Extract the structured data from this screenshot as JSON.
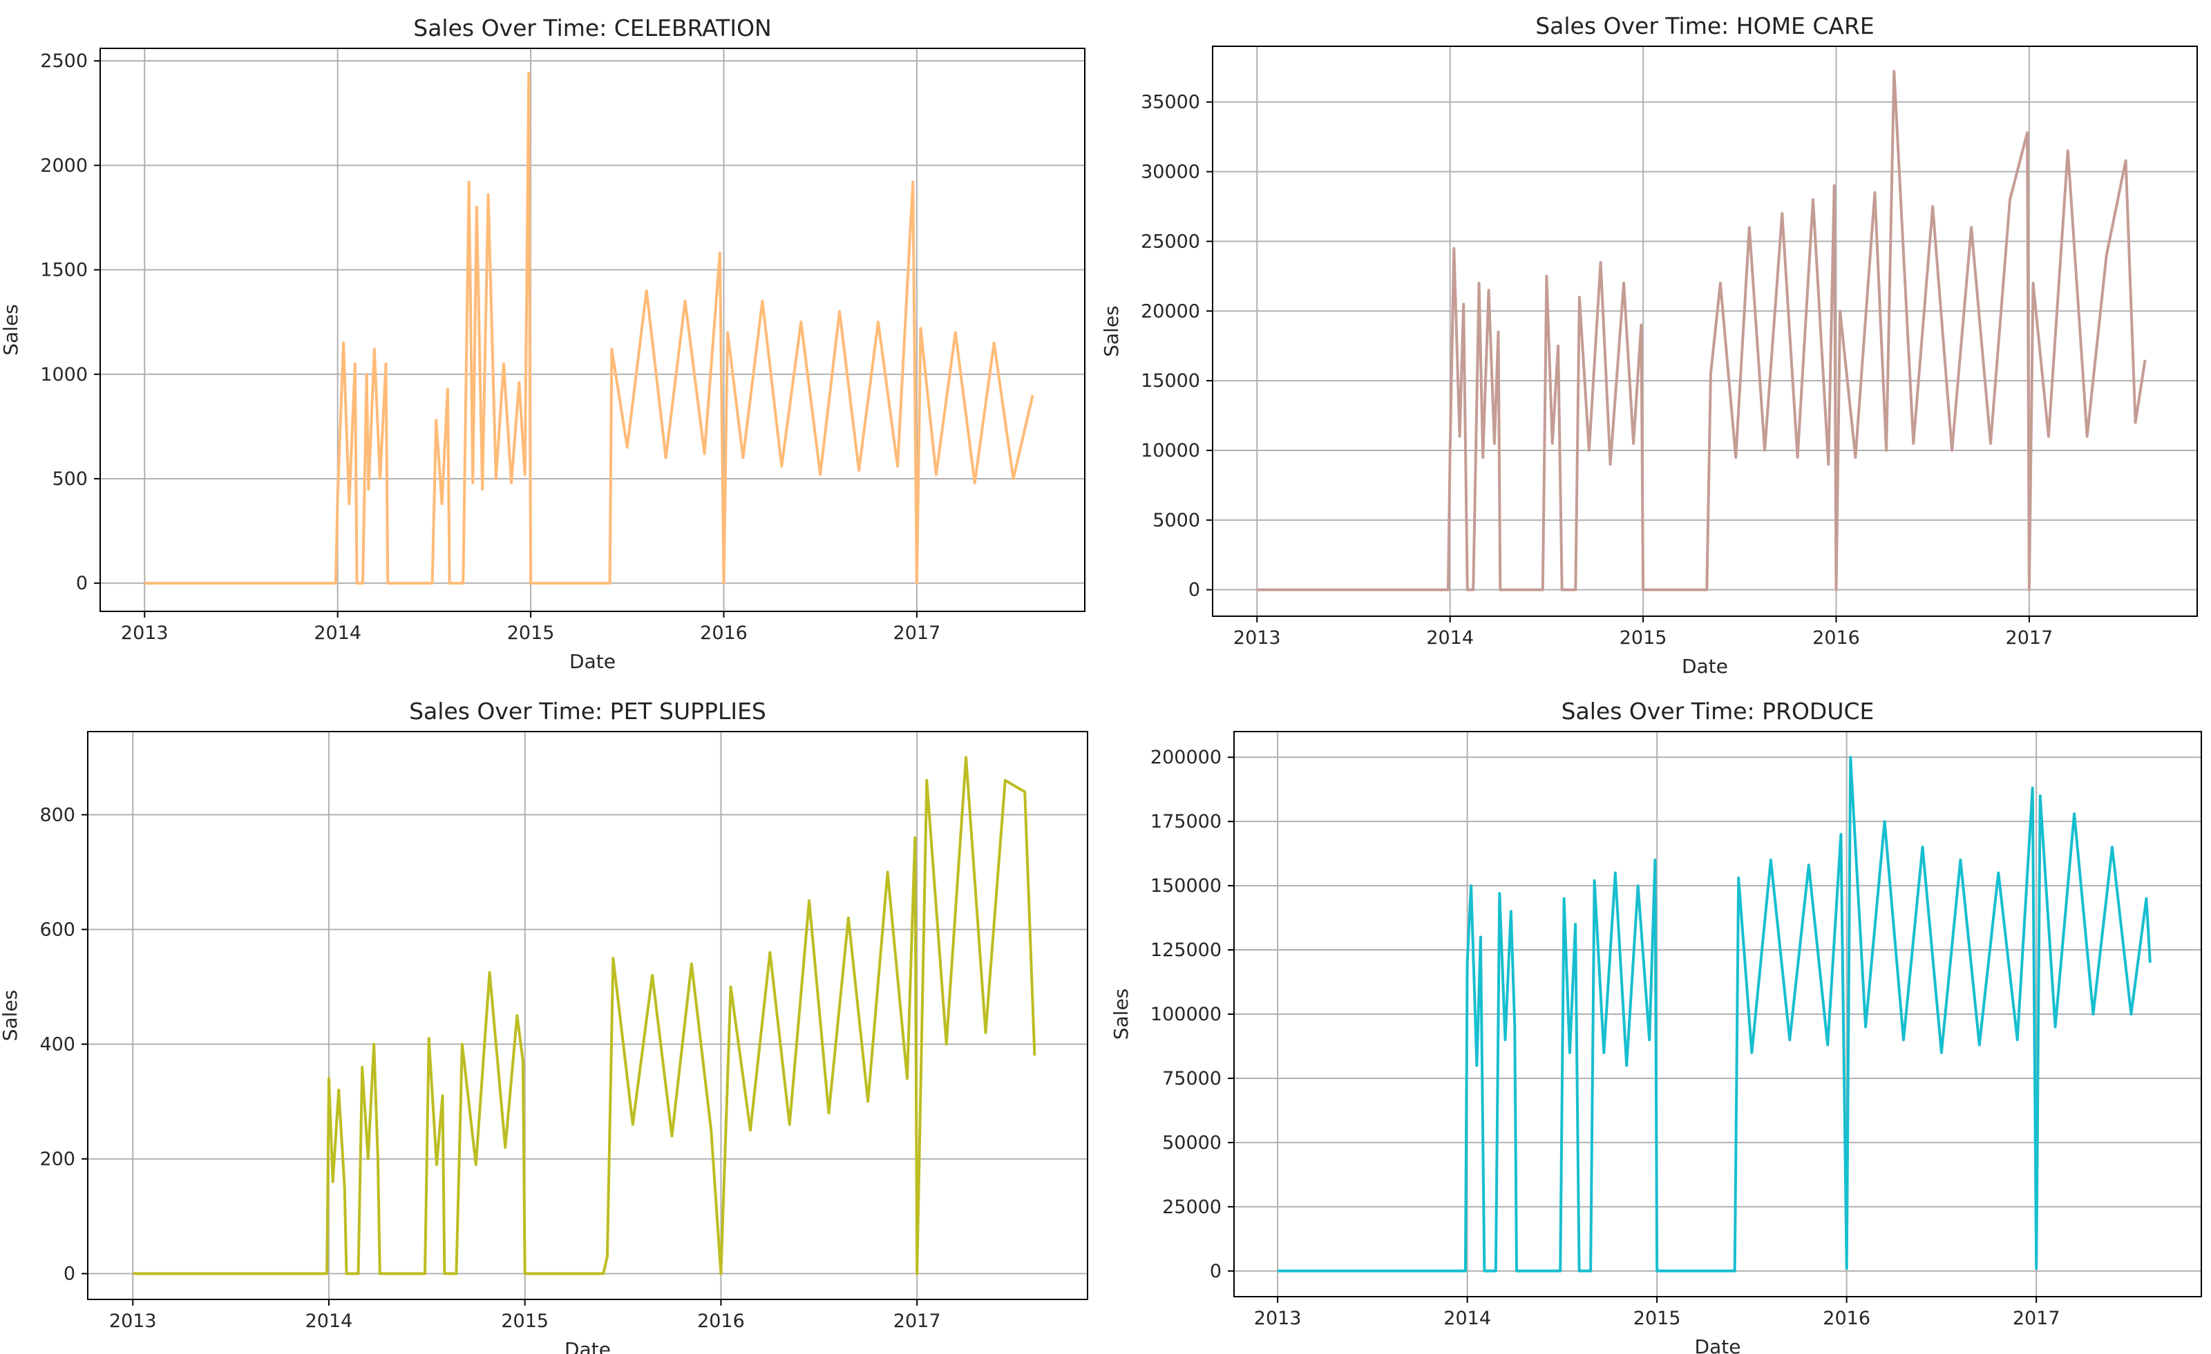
{
  "figure": {
    "background": "#ffffff",
    "grid_color": "#b0b0b0",
    "axes_color": "#000000"
  },
  "chart_data": [
    {
      "type": "line",
      "title": "Sales Over Time: CELEBRATION",
      "xlabel": "Date",
      "ylabel": "Sales",
      "color": "#ffbb78",
      "grid": true,
      "legend": "none",
      "xlim": [
        2012.77,
        2017.87
      ],
      "ylim": [
        -135,
        2560
      ],
      "xticks": [
        2013,
        2014,
        2015,
        2016,
        2017
      ],
      "xtick_labels": [
        "2013",
        "2014",
        "2015",
        "2016",
        "2017"
      ],
      "yticks": [
        0,
        500,
        1000,
        1500,
        2000,
        2500
      ],
      "ytick_labels": [
        "0",
        "500",
        "1000",
        "1500",
        "2000",
        "2500"
      ],
      "series": [
        {
          "x": [
            2013.0,
            2013.99,
            2014.0,
            2014.03,
            2014.06,
            2014.09,
            2014.1,
            2014.13,
            2014.15,
            2014.16,
            2014.19,
            2014.22,
            2014.25,
            2014.26,
            2014.49,
            2014.51,
            2014.54,
            2014.57,
            2014.58,
            2014.65,
            2014.68,
            2014.7,
            2014.72,
            2014.75,
            2014.78,
            2014.82,
            2014.86,
            2014.9,
            2014.94,
            2014.97,
            2014.99,
            2015.0,
            2015.41,
            2015.42,
            2015.5,
            2015.6,
            2015.7,
            2015.8,
            2015.9,
            2015.98,
            2016.0,
            2016.02,
            2016.1,
            2016.2,
            2016.3,
            2016.4,
            2016.5,
            2016.6,
            2016.7,
            2016.8,
            2016.9,
            2016.98,
            2017.0,
            2017.02,
            2017.1,
            2017.2,
            2017.3,
            2017.4,
            2017.5,
            2017.6
          ],
          "y": [
            0,
            0,
            420,
            1150,
            380,
            1050,
            0,
            0,
            1000,
            450,
            1120,
            500,
            1050,
            0,
            0,
            780,
            380,
            930,
            0,
            0,
            1920,
            480,
            1800,
            450,
            1860,
            500,
            1050,
            480,
            960,
            520,
            2440,
            0,
            0,
            1120,
            650,
            1400,
            600,
            1350,
            620,
            1580,
            0,
            1200,
            600,
            1350,
            560,
            1250,
            520,
            1300,
            540,
            1250,
            560,
            1920,
            0,
            1220,
            520,
            1200,
            480,
            1150,
            500,
            900
          ]
        }
      ]
    },
    {
      "type": "line",
      "title": "Sales Over Time: HOME CARE",
      "xlabel": "Date",
      "ylabel": "Sales",
      "color": "#c49c94",
      "grid": true,
      "legend": "none",
      "xlim": [
        2012.77,
        2017.87
      ],
      "ylim": [
        -1900,
        39000
      ],
      "xticks": [
        2013,
        2014,
        2015,
        2016,
        2017
      ],
      "xtick_labels": [
        "2013",
        "2014",
        "2015",
        "2016",
        "2017"
      ],
      "yticks": [
        0,
        5000,
        10000,
        15000,
        20000,
        25000,
        30000,
        35000
      ],
      "ytick_labels": [
        "0",
        "5000",
        "10000",
        "15000",
        "20000",
        "25000",
        "30000",
        "35000"
      ],
      "series": [
        {
          "x": [
            2013.0,
            2013.99,
            2014.0,
            2014.02,
            2014.05,
            2014.07,
            2014.09,
            2014.12,
            2014.15,
            2014.17,
            2014.2,
            2014.23,
            2014.25,
            2014.26,
            2014.48,
            2014.5,
            2014.53,
            2014.56,
            2014.58,
            2014.65,
            2014.67,
            2014.72,
            2014.78,
            2014.83,
            2014.9,
            2014.95,
            2014.99,
            2015.0,
            2015.33,
            2015.35,
            2015.4,
            2015.48,
            2015.55,
            2015.63,
            2015.72,
            2015.8,
            2015.88,
            2015.96,
            2015.99,
            2016.0,
            2016.02,
            2016.1,
            2016.2,
            2016.26,
            2016.3,
            2016.4,
            2016.5,
            2016.6,
            2016.7,
            2016.8,
            2016.9,
            2016.99,
            2017.0,
            2017.02,
            2017.1,
            2017.2,
            2017.3,
            2017.4,
            2017.5,
            2017.55,
            2017.6
          ],
          "y": [
            0,
            0,
            10000,
            24500,
            11000,
            20500,
            0,
            0,
            22000,
            9500,
            21500,
            10500,
            18500,
            0,
            0,
            22500,
            10500,
            17500,
            0,
            0,
            21000,
            10000,
            23500,
            9000,
            22000,
            10500,
            19000,
            0,
            0,
            15500,
            22000,
            9500,
            26000,
            10000,
            27000,
            9500,
            28000,
            9000,
            29000,
            0,
            20000,
            9500,
            28500,
            10000,
            37200,
            10500,
            27500,
            10000,
            26000,
            10500,
            28000,
            32800,
            0,
            22000,
            11000,
            31500,
            11000,
            24000,
            30800,
            12000,
            16500
          ]
        }
      ]
    },
    {
      "type": "line",
      "title": "Sales Over Time: PET SUPPLIES",
      "xlabel": "Date",
      "ylabel": "Sales",
      "color": "#bcbd22",
      "grid": true,
      "legend": "none",
      "xlim": [
        2012.77,
        2017.87
      ],
      "ylim": [
        -45,
        945
      ],
      "xticks": [
        2013,
        2014,
        2015,
        2016,
        2017
      ],
      "xtick_labels": [
        "2013",
        "2014",
        "2015",
        "2016",
        "2017"
      ],
      "yticks": [
        0,
        200,
        400,
        600,
        800
      ],
      "ytick_labels": [
        "0",
        "200",
        "400",
        "600",
        "800"
      ],
      "series": [
        {
          "x": [
            2013.0,
            2013.99,
            2014.0,
            2014.02,
            2014.05,
            2014.08,
            2014.09,
            2014.15,
            2014.17,
            2014.2,
            2014.23,
            2014.25,
            2014.26,
            2014.49,
            2014.51,
            2014.55,
            2014.58,
            2014.59,
            2014.65,
            2014.68,
            2014.75,
            2014.82,
            2014.9,
            2014.96,
            2014.99,
            2015.0,
            2015.4,
            2015.42,
            2015.45,
            2015.55,
            2015.65,
            2015.75,
            2015.85,
            2015.95,
            2016.0,
            2016.05,
            2016.15,
            2016.25,
            2016.35,
            2016.45,
            2016.55,
            2016.65,
            2016.75,
            2016.85,
            2016.95,
            2016.99,
            2017.0,
            2017.05,
            2017.15,
            2017.25,
            2017.35,
            2017.45,
            2017.55,
            2017.6
          ],
          "y": [
            0,
            0,
            340,
            160,
            320,
            150,
            0,
            0,
            360,
            200,
            400,
            200,
            0,
            0,
            410,
            190,
            310,
            0,
            0,
            400,
            190,
            525,
            220,
            450,
            370,
            0,
            0,
            30,
            550,
            260,
            520,
            240,
            540,
            250,
            0,
            500,
            250,
            560,
            260,
            650,
            280,
            620,
            300,
            700,
            340,
            760,
            0,
            860,
            400,
            900,
            420,
            860,
            840,
            380
          ]
        }
      ]
    },
    {
      "type": "line",
      "title": "Sales Over Time: PRODUCE",
      "xlabel": "Date",
      "ylabel": "Sales",
      "color": "#17becf",
      "grid": true,
      "legend": "none",
      "xlim": [
        2012.77,
        2017.87
      ],
      "ylim": [
        -10000,
        210000
      ],
      "xticks": [
        2013,
        2014,
        2015,
        2016,
        2017
      ],
      "xtick_labels": [
        "2013",
        "2014",
        "2015",
        "2016",
        "2017"
      ],
      "yticks": [
        0,
        25000,
        50000,
        75000,
        100000,
        125000,
        150000,
        175000,
        200000
      ],
      "ytick_labels": [
        "0",
        "25000",
        "50000",
        "75000",
        "100000",
        "125000",
        "150000",
        "175000",
        "200000"
      ],
      "series": [
        {
          "x": [
            2013.0,
            2013.99,
            2014.0,
            2014.02,
            2014.05,
            2014.07,
            2014.09,
            2014.15,
            2014.17,
            2014.2,
            2014.23,
            2014.25,
            2014.26,
            2014.49,
            2014.51,
            2014.54,
            2014.57,
            2014.59,
            2014.65,
            2014.67,
            2014.72,
            2014.78,
            2014.84,
            2014.9,
            2014.96,
            2014.99,
            2015.0,
            2015.41,
            2015.43,
            2015.5,
            2015.6,
            2015.7,
            2015.8,
            2015.9,
            2015.97,
            2016.0,
            2016.02,
            2016.1,
            2016.2,
            2016.3,
            2016.4,
            2016.5,
            2016.6,
            2016.7,
            2016.8,
            2016.9,
            2016.98,
            2017.0,
            2017.02,
            2017.1,
            2017.2,
            2017.3,
            2017.4,
            2017.5,
            2017.58,
            2017.6
          ],
          "y": [
            0,
            0,
            120000,
            150000,
            80000,
            130000,
            0,
            0,
            147000,
            90000,
            140000,
            95000,
            0,
            0,
            145000,
            85000,
            135000,
            0,
            0,
            152000,
            85000,
            155000,
            80000,
            150000,
            90000,
            160000,
            0,
            0,
            153000,
            85000,
            160000,
            90000,
            158000,
            88000,
            170000,
            1000,
            200000,
            95000,
            175000,
            90000,
            165000,
            85000,
            160000,
            88000,
            155000,
            90000,
            188000,
            1000,
            185000,
            95000,
            178000,
            100000,
            165000,
            100000,
            145000,
            120000
          ]
        }
      ]
    }
  ]
}
